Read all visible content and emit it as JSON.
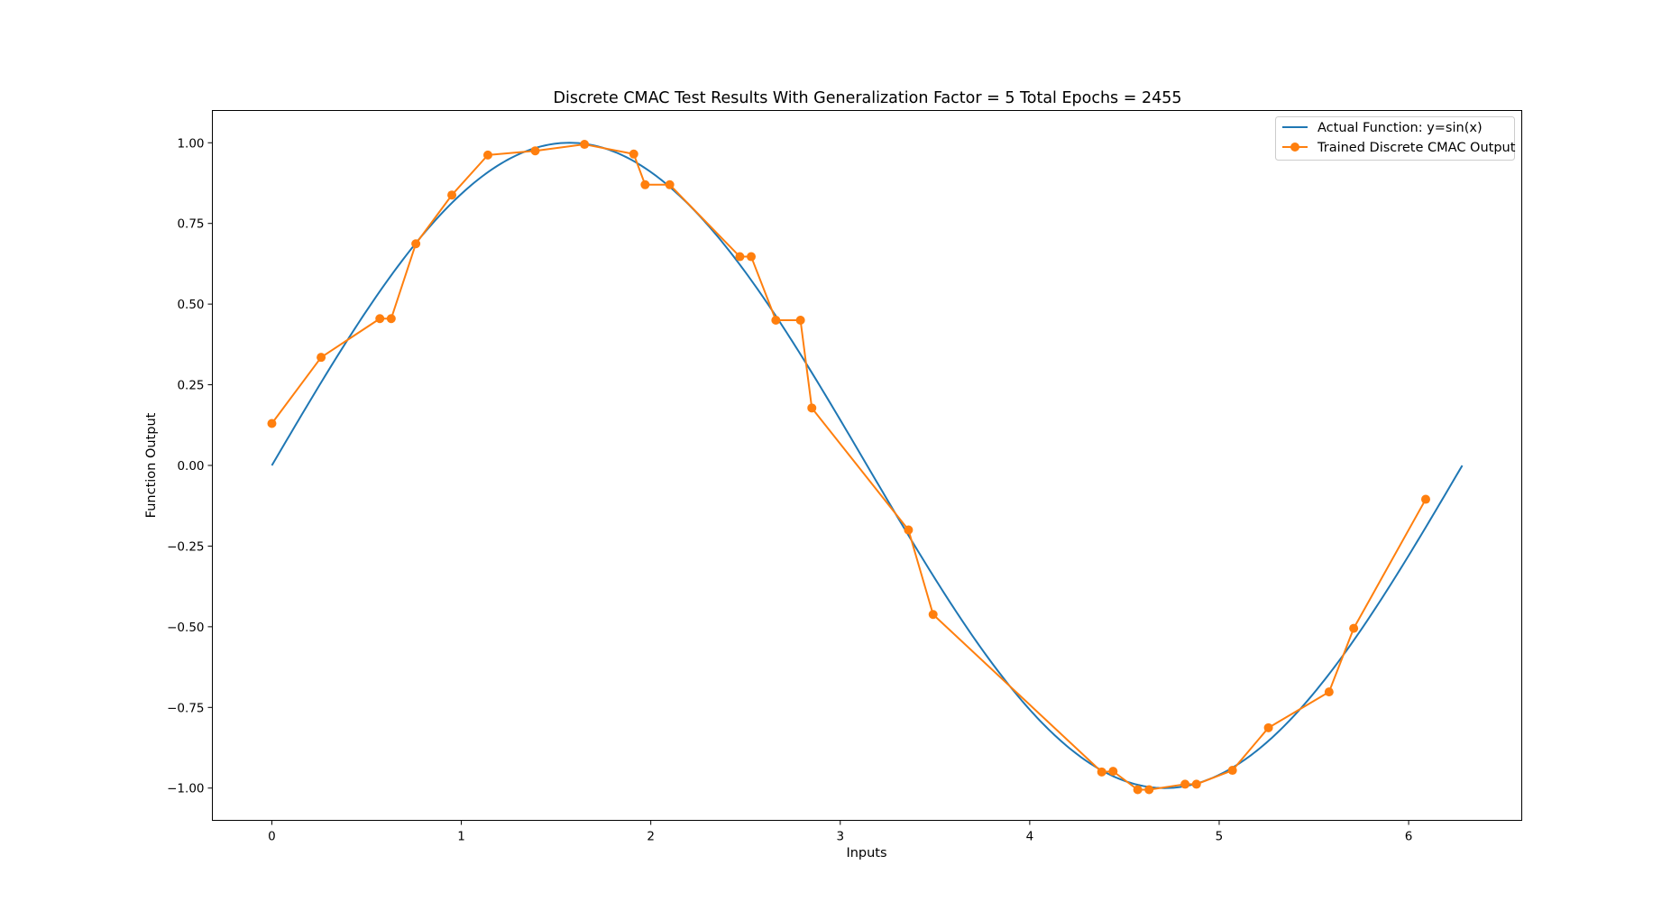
{
  "chart_data": {
    "type": "line",
    "title": "Discrete CMAC Test Results With Generalization Factor = 5 Total Epochs = 2455",
    "xlabel": "Inputs",
    "ylabel": "Function Output",
    "xlim": [
      -0.314,
      6.597
    ],
    "ylim": [
      -1.1,
      1.1
    ],
    "x_ticks": [
      0,
      1,
      2,
      3,
      4,
      5,
      6
    ],
    "x_tick_labels": [
      "0",
      "1",
      "2",
      "3",
      "4",
      "5",
      "6"
    ],
    "y_ticks": [
      1.0,
      0.75,
      0.5,
      0.25,
      0.0,
      -0.25,
      -0.5,
      -0.75,
      -1.0
    ],
    "y_tick_labels": [
      "1.00",
      "0.75",
      "0.50",
      "0.25",
      "0.00",
      "−0.25",
      "−0.50",
      "−0.75",
      "−1.00"
    ],
    "grid": false,
    "legend_position": "top-right",
    "series": [
      {
        "name": "Actual Function: y=sin(x)",
        "color": "#1f77b4",
        "marker": "none",
        "function": "sin",
        "x_range": [
          0,
          6.283
        ]
      },
      {
        "name": "Trained Discrete CMAC Output",
        "color": "#ff7f0e",
        "marker": "circle",
        "points": [
          [
            0.0,
            0.13
          ],
          [
            0.26,
            0.335
          ],
          [
            0.57,
            0.455
          ],
          [
            0.63,
            0.455
          ],
          [
            0.76,
            0.687
          ],
          [
            0.95,
            0.838
          ],
          [
            1.14,
            0.962
          ],
          [
            1.39,
            0.975
          ],
          [
            1.65,
            0.995
          ],
          [
            1.91,
            0.965
          ],
          [
            1.97,
            0.87
          ],
          [
            2.1,
            0.87
          ],
          [
            2.47,
            0.647
          ],
          [
            2.53,
            0.647
          ],
          [
            2.66,
            0.45
          ],
          [
            2.79,
            0.45
          ],
          [
            2.85,
            0.178
          ],
          [
            3.36,
            -0.2
          ],
          [
            3.49,
            -0.462
          ],
          [
            4.38,
            -0.95
          ],
          [
            4.44,
            -0.948
          ],
          [
            4.57,
            -1.005
          ],
          [
            4.63,
            -1.005
          ],
          [
            4.82,
            -0.988
          ],
          [
            4.88,
            -0.988
          ],
          [
            5.07,
            -0.945
          ],
          [
            5.26,
            -0.813
          ],
          [
            5.58,
            -0.702
          ],
          [
            5.71,
            -0.505
          ],
          [
            6.09,
            -0.105
          ]
        ]
      }
    ]
  }
}
